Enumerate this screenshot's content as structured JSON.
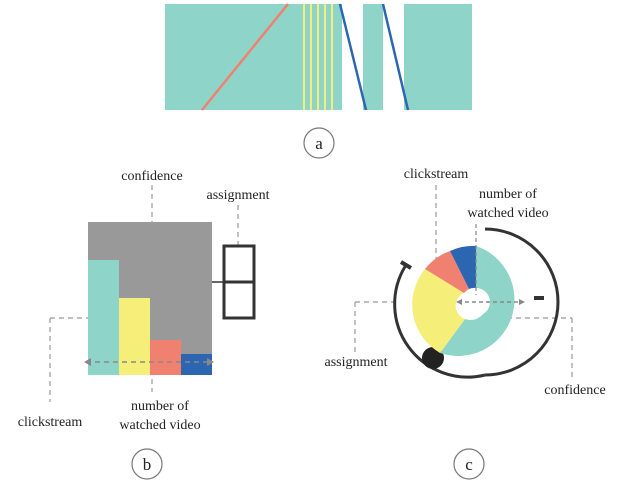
{
  "colors": {
    "teal": "#8fd4c9",
    "salmon": "#f08070",
    "yellow": "#f5ef7a",
    "blue": "#2d66b0",
    "gray": "#999999",
    "dark": "#333333",
    "dashed": "#999999"
  },
  "panel_a": {
    "caption": "a"
  },
  "panel_b": {
    "caption": "b",
    "labels": {
      "confidence": "confidence",
      "assignment": "assignment",
      "clickstream": "clickstream",
      "watched_line1": "number of",
      "watched_line2": "watched video"
    },
    "bar_fractions": {
      "clickstream": 0.75,
      "watched": 0.5,
      "salmon": 0.23,
      "blue": 0.14
    },
    "icons": {
      "assignment": "two-stacked-squares-icon"
    }
  },
  "panel_c": {
    "caption": "c",
    "labels": {
      "clickstream": "clickstream",
      "watched_line1": "number of",
      "watched_line2": "watched video",
      "assignment": "assignment",
      "confidence": "confidence"
    },
    "icons": {
      "handle": "round-handle-icon"
    }
  }
}
